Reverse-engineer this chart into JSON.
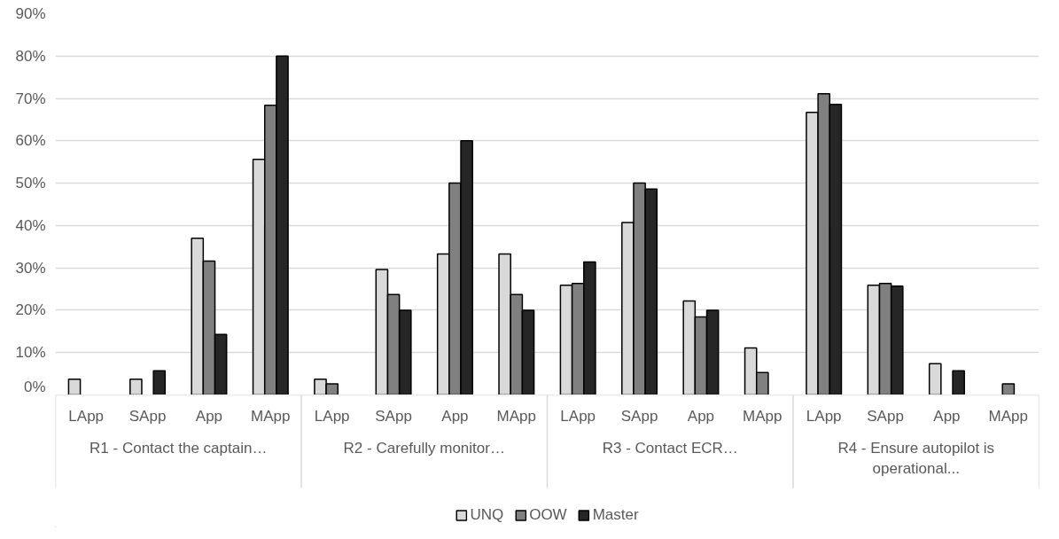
{
  "chart_data": {
    "type": "bar",
    "categories": [
      "LApp",
      "SApp",
      "App",
      "MApp",
      "LApp",
      "SApp",
      "App",
      "MApp",
      "LApp",
      "SApp",
      "App",
      "MApp",
      "LApp",
      "SApp",
      "App",
      "MApp"
    ],
    "annotations": [
      "R1 - Contact the captain…",
      "R2 - Carefully monitor…",
      "R3 - Contact ECR…",
      "R4 - Ensure autopilot is\noperational..."
    ],
    "series": [
      {
        "name": "UNQ",
        "color": "#d9d9d9",
        "values": [
          3.7,
          3.7,
          37,
          55.6,
          3.7,
          29.6,
          33.3,
          33.3,
          25.9,
          40.7,
          22.2,
          11.1,
          66.7,
          25.9,
          7.4,
          null
        ]
      },
      {
        "name": "OOW",
        "color": "#808080",
        "values": [
          null,
          null,
          31.6,
          68.4,
          2.6,
          23.7,
          50,
          23.7,
          26.3,
          50,
          18.4,
          5.3,
          71.1,
          26.3,
          null,
          2.6
        ]
      },
      {
        "name": "Master",
        "color": "#262626",
        "values": [
          null,
          5.7,
          14.3,
          80,
          null,
          20,
          60,
          20,
          31.4,
          48.6,
          20,
          null,
          68.6,
          25.7,
          5.7,
          null
        ]
      }
    ],
    "ylim": [
      0,
      90
    ],
    "yticks": [
      {
        "value": 0,
        "label": "0%"
      },
      {
        "value": 10,
        "label": "10%"
      },
      {
        "value": 20,
        "label": "20%"
      },
      {
        "value": 30,
        "label": "30%"
      },
      {
        "value": 40,
        "label": "40%"
      },
      {
        "value": 50,
        "label": "50%"
      },
      {
        "value": 60,
        "label": "60%"
      },
      {
        "value": 70,
        "label": "70%"
      },
      {
        "value": 80,
        "label": "80%"
      },
      {
        "value": 90,
        "label": "90%"
      }
    ],
    "grid": "y",
    "legend": "bottom"
  }
}
